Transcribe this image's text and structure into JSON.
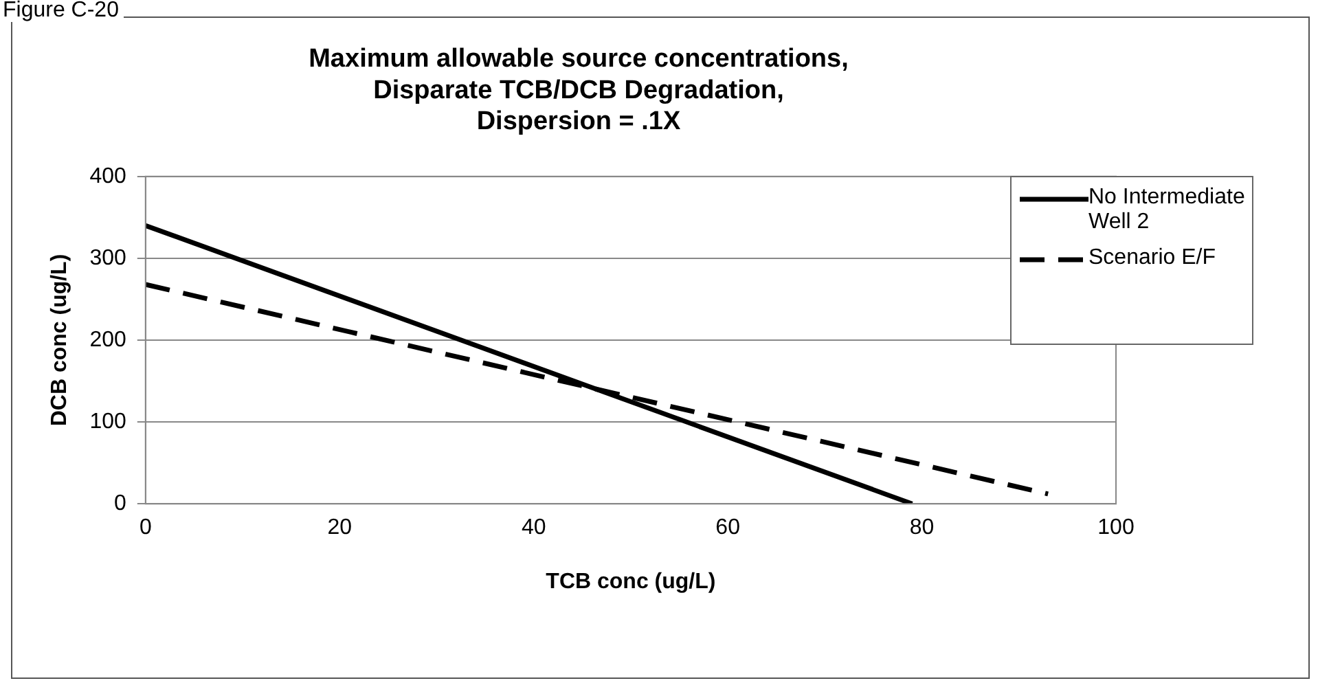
{
  "chart_data": {
    "type": "line",
    "title": "Maximum allowable source concentrations, Disparate TCB/DCB Degradation, Dispersion = .1X",
    "xlabel": "TCB conc (ug/L)",
    "ylabel": "DCB conc (ug/L)",
    "annotations": [
      "Figure C-20"
    ],
    "xlim": [
      0,
      100
    ],
    "xticks": [
      0,
      20,
      40,
      60,
      80,
      100
    ],
    "ylim": [
      0,
      400
    ],
    "yticks": [
      0,
      100,
      200,
      300,
      400
    ],
    "grid": "y",
    "legend": "top right",
    "marker": "none",
    "series": [
      {
        "name": "No Intermediate Well 2",
        "color": "#000000",
        "x": [
          0,
          79
        ],
        "values": [
          340,
          0
        ],
        "line_style": "solid"
      },
      {
        "name": "Scenario E/F",
        "color": "#000000",
        "x": [
          0,
          93
        ],
        "values": [
          268,
          12
        ],
        "line_style": "dashed"
      }
    ]
  }
}
